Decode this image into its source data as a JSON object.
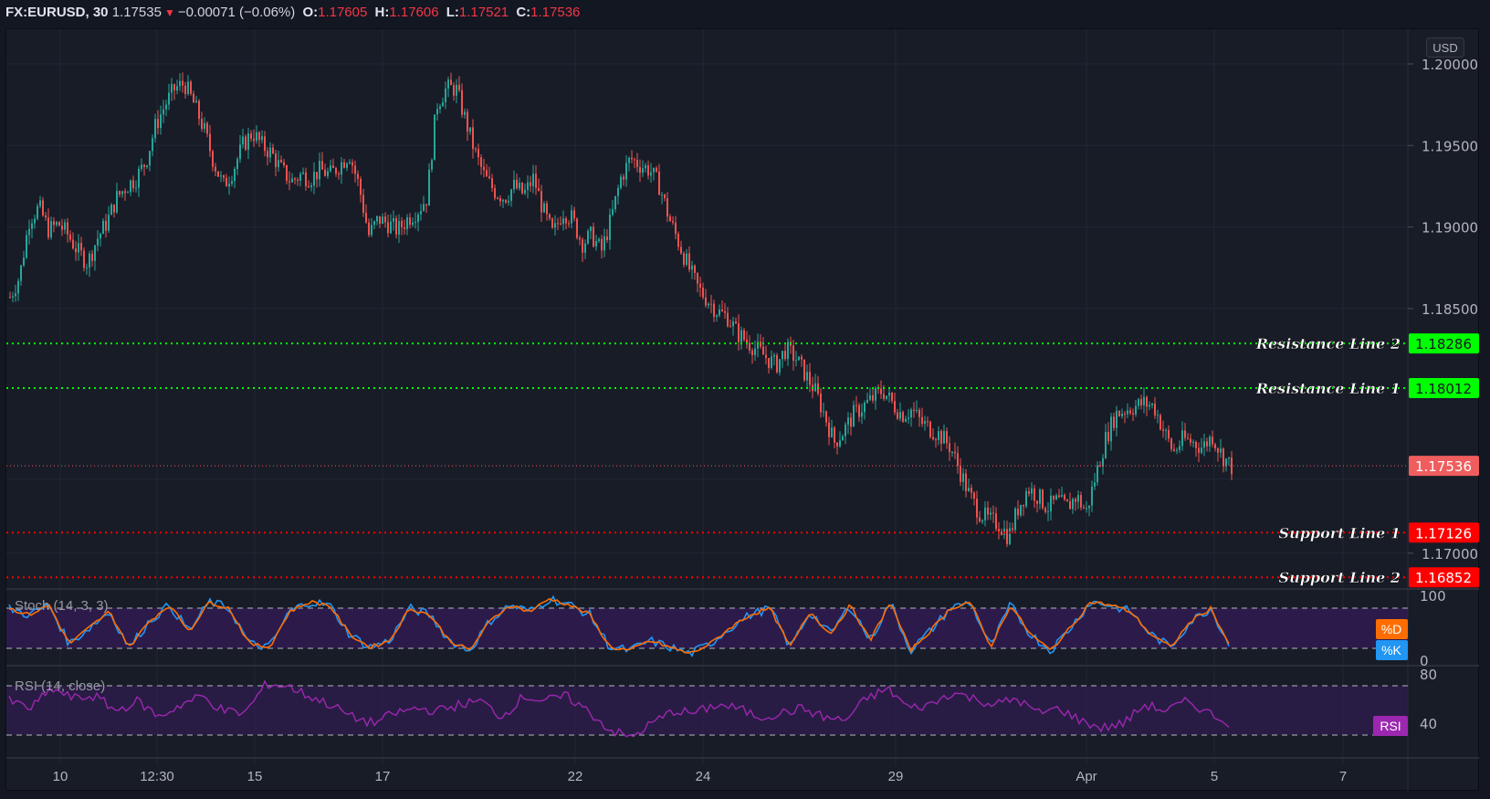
{
  "header": {
    "symbol": "FX:EURUSD, 30",
    "last": "1.17535",
    "direction": "down",
    "change": "−0.00071 (−0.06%)",
    "open_label": "O:",
    "open": "1.17605",
    "high_label": "H:",
    "high": "1.17606",
    "low_label": "L:",
    "low": "1.17521",
    "close_label": "C:",
    "close": "1.17536"
  },
  "currency_button": "USD",
  "colors": {
    "background": "#181c27",
    "up": "#26a69a",
    "down": "#ef5350",
    "resistance": "#00ff00",
    "support": "#ff0000",
    "last_price": "#f05d5e",
    "stoch_k": "#2196f3",
    "stoch_d": "#ff6d00",
    "rsi": "#9c27b0",
    "band_fill": "#2f1c4f"
  },
  "price_axis": {
    "ticks": [
      "1.20000",
      "1.19500",
      "1.19000",
      "1.18500",
      "1.17000"
    ],
    "tick_values": [
      1.2,
      1.195,
      1.19,
      1.185,
      1.17
    ]
  },
  "levels": [
    {
      "name": "Resistance Line 2",
      "value": "1.18286",
      "type": "resistance"
    },
    {
      "name": "Resistance Line 1",
      "value": "1.18012",
      "type": "resistance"
    },
    {
      "name": "Support Line 1",
      "value": "1.17126",
      "type": "support"
    },
    {
      "name": "Support Line 2",
      "value": "1.16852",
      "type": "support"
    }
  ],
  "last_price_label": "1.17536",
  "time_axis": {
    "labels": [
      "10",
      "12:30",
      "15",
      "17",
      "22",
      "24",
      "29",
      "Apr",
      "5",
      "7"
    ]
  },
  "indicators": {
    "stoch": {
      "title": "Stoch (14, 3, 3)",
      "axis": [
        "100",
        "0"
      ],
      "tags": [
        "%D",
        "%K"
      ]
    },
    "rsi": {
      "title": "RSI (14, close)",
      "axis": [
        "80",
        "40"
      ],
      "tag": "RSI"
    }
  },
  "chart_data": {
    "type": "candlestick",
    "title": "FX:EURUSD, 30",
    "xlabel": "",
    "ylabel": "USD",
    "ylim": [
      1.1675,
      1.2022
    ],
    "x_ticks": [
      "10",
      "12:30",
      "15",
      "17",
      "22",
      "24",
      "29",
      "Apr",
      "5",
      "7"
    ],
    "y_ticks": [
      1.2,
      1.195,
      1.19,
      1.185,
      1.17
    ],
    "price_path": [
      1.1857,
      1.187,
      1.1905,
      1.1912,
      1.1898,
      1.1902,
      1.1895,
      1.1885,
      1.1878,
      1.1893,
      1.1903,
      1.1918,
      1.1925,
      1.193,
      1.194,
      1.1962,
      1.1975,
      1.1985,
      1.1988,
      1.1975,
      1.196,
      1.194,
      1.1925,
      1.1935,
      1.195,
      1.1958,
      1.195,
      1.1945,
      1.1935,
      1.1928,
      1.1932,
      1.193,
      1.1935,
      1.1932,
      1.1938,
      1.1945,
      1.1925,
      1.1895,
      1.1905,
      1.1902,
      1.1898,
      1.1905,
      1.191,
      1.1918,
      1.1975,
      1.1985,
      1.1985,
      1.1965,
      1.1945,
      1.193,
      1.1922,
      1.1918,
      1.1925,
      1.192,
      1.193,
      1.191,
      1.1895,
      1.191,
      1.1905,
      1.189,
      1.1895,
      1.1885,
      1.1905,
      1.193,
      1.1942,
      1.1938,
      1.1935,
      1.1925,
      1.1905,
      1.189,
      1.1875,
      1.1862,
      1.1855,
      1.1848,
      1.1845,
      1.1835,
      1.183,
      1.1825,
      1.182,
      1.1815,
      1.1825,
      1.182,
      1.181,
      1.18,
      1.1785,
      1.1768,
      1.1775,
      1.1785,
      1.179,
      1.1795,
      1.18,
      1.1792,
      1.1785,
      1.1788,
      1.178,
      1.1776,
      1.1772,
      1.1765,
      1.175,
      1.1735,
      1.1725,
      1.172,
      1.1718,
      1.171,
      1.1728,
      1.174,
      1.1735,
      1.1728,
      1.1732,
      1.1728,
      1.1735,
      1.1725,
      1.1748,
      1.177,
      1.1785,
      1.1788,
      1.179,
      1.1792,
      1.179,
      1.1775,
      1.1762,
      1.177,
      1.1768,
      1.1765,
      1.1772,
      1.176,
      1.1753
    ],
    "horizontal_levels": [
      {
        "label": "Resistance Line 2",
        "value": 1.18286
      },
      {
        "label": "Resistance Line 1",
        "value": 1.18012
      },
      {
        "label": "Support Line 1",
        "value": 1.17126
      },
      {
        "label": "Support Line 2",
        "value": 1.16852
      }
    ],
    "last_price": 1.17536,
    "stoch": {
      "k_range": [
        0,
        100
      ],
      "bands": [
        20,
        80
      ],
      "k_approx": [
        80,
        70,
        85,
        25,
        50,
        75,
        20,
        60,
        85,
        45,
        90,
        80,
        25,
        20,
        75,
        90,
        85,
        40,
        20,
        30,
        80,
        70,
        30,
        15,
        60,
        85,
        75,
        95,
        85,
        70,
        20,
        15,
        30,
        20,
        10,
        25,
        50,
        70,
        80,
        20,
        75,
        40,
        85,
        30,
        90,
        15,
        45,
        80,
        90,
        20,
        85,
        40,
        15,
        50,
        90,
        85,
        75,
        40,
        20,
        60,
        80,
        20
      ]
    },
    "rsi": {
      "range": [
        0,
        100
      ],
      "bands": [
        30,
        70
      ],
      "values_approx": [
        58,
        52,
        68,
        60,
        62,
        50,
        58,
        45,
        55,
        62,
        50,
        48,
        72,
        70,
        62,
        55,
        45,
        40,
        48,
        52,
        50,
        55,
        58,
        45,
        62,
        58,
        62,
        50,
        35,
        28,
        40,
        50,
        48,
        55,
        52,
        45,
        48,
        52,
        45,
        42,
        60,
        68,
        52,
        55,
        65,
        60,
        55,
        60,
        48,
        52,
        42,
        36,
        40,
        55,
        50,
        58,
        48,
        40
      ]
    }
  }
}
